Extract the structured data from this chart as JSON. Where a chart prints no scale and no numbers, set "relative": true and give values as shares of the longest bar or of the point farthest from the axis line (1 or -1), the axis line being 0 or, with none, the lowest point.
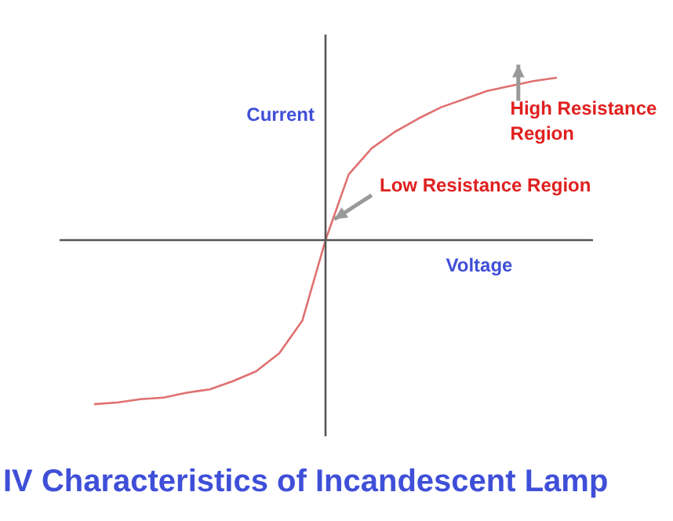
{
  "chart_data": {
    "type": "line",
    "title": "IV Characteristics of Incandescent Lamp",
    "xlabel": "Voltage",
    "ylabel": "Current",
    "relative": true,
    "marker": "none",
    "color": "#e07070",
    "categories": [
      null,
      null,
      null,
      null,
      null,
      null,
      null,
      null,
      null,
      null,
      null,
      null,
      null,
      null,
      null,
      null,
      null,
      null,
      null,
      null,
      null
    ],
    "values": [
      -1,
      -0.99,
      -0.97,
      -0.96,
      -0.93,
      -0.91,
      -0.86,
      -0.8,
      -0.69,
      -0.49,
      0,
      0.4,
      0.56,
      0.66,
      0.74,
      0.81,
      0.86,
      0.91,
      0.94,
      0.97,
      0.99
    ],
    "annotations": [
      "Low Resistance Region",
      "High Resistance Region"
    ]
  }
}
